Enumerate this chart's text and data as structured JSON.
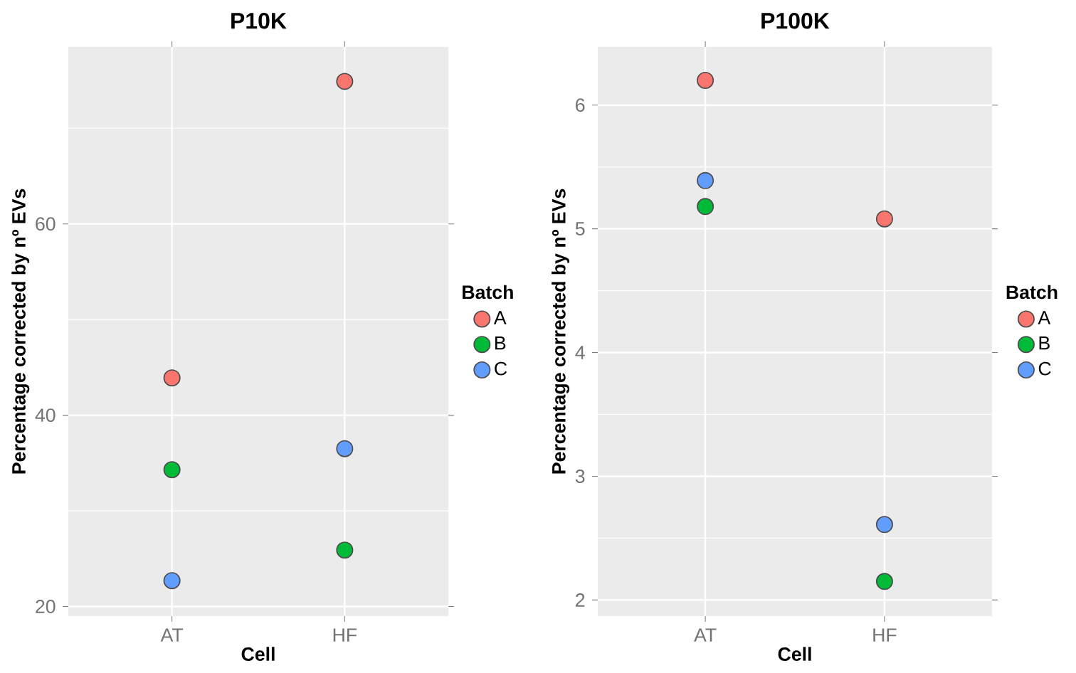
{
  "chart_data": [
    {
      "type": "scatter",
      "title": "P10K",
      "xlabel": "Cell",
      "ylabel": "Percentage corrected by nº EVs",
      "legend_title": "Batch",
      "categories": [
        "AT",
        "HF"
      ],
      "series": [
        {
          "name": "A",
          "color": "#f8766d",
          "values": [
            43.9,
            74.9
          ]
        },
        {
          "name": "B",
          "color": "#00ba38",
          "values": [
            34.3,
            25.9
          ]
        },
        {
          "name": "C",
          "color": "#619cff",
          "values": [
            22.7,
            36.5
          ]
        }
      ],
      "ylim": [
        19.0,
        78.5
      ],
      "yticks": [
        20,
        {
          "value": 30,
          "label": null
        },
        40,
        {
          "value": 50,
          "label": null
        },
        60,
        {
          "value": 70,
          "label": null
        }
      ],
      "grid": true,
      "legend": "right"
    },
    {
      "type": "scatter",
      "title": "P100K",
      "xlabel": "Cell",
      "ylabel": "Percentage corrected by nº EVs",
      "legend_title": "Batch",
      "categories": [
        "AT",
        "HF"
      ],
      "series": [
        {
          "name": "A",
          "color": "#f8766d",
          "values": [
            6.2,
            5.08
          ]
        },
        {
          "name": "B",
          "color": "#00ba38",
          "values": [
            5.18,
            2.15
          ]
        },
        {
          "name": "C",
          "color": "#619cff",
          "values": [
            5.39,
            2.61
          ]
        }
      ],
      "ylim": [
        1.87,
        6.47
      ],
      "yticks": [
        2,
        {
          "value": 2.5,
          "label": null
        },
        3,
        {
          "value": 3.5,
          "label": null
        },
        4,
        {
          "value": 4.5,
          "label": null
        },
        5,
        {
          "value": 5.5,
          "label": null
        },
        6
      ],
      "grid": true,
      "legend": "right"
    }
  ]
}
